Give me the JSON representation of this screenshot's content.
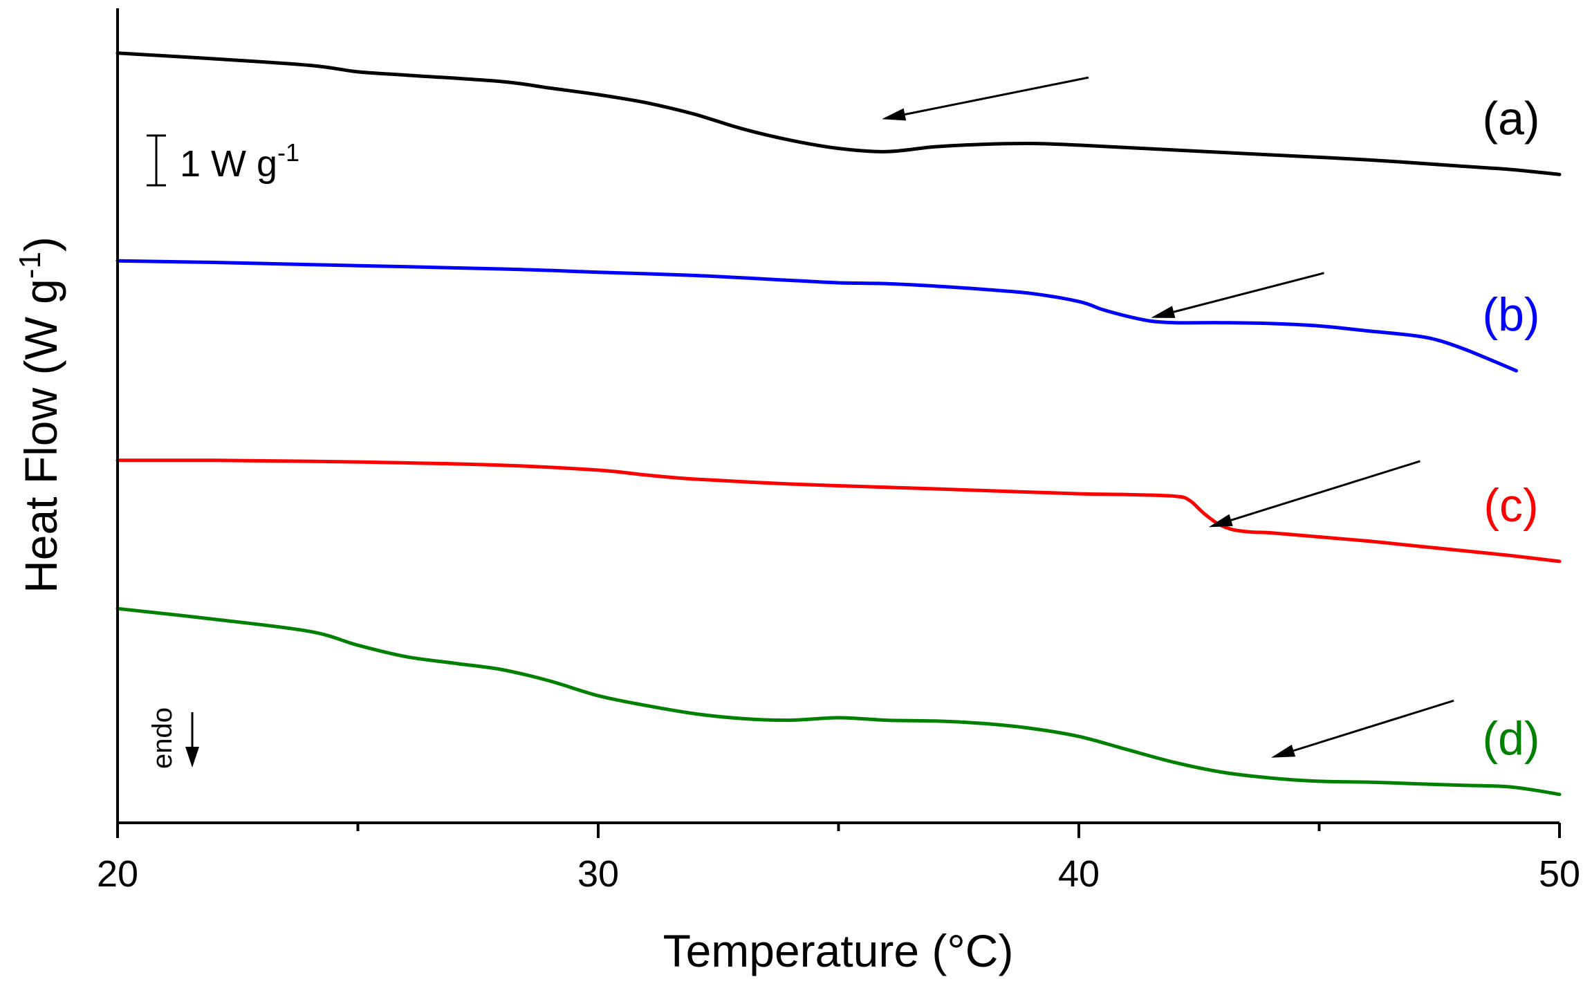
{
  "chart_data": {
    "type": "line",
    "title": "",
    "xlabel": "Temperature (°C)",
    "ylabel_main": "Heat Flow (W g",
    "ylabel_sup": "-1",
    "ylabel_close": ")",
    "xlim": [
      20,
      50
    ],
    "ylim": [
      0,
      10
    ],
    "x_ticks": [
      20,
      30,
      40,
      50
    ],
    "x_tick_labels": [
      "20",
      "30",
      "40",
      "50"
    ],
    "x_minor_ticks": [
      25,
      35,
      45
    ],
    "grid": false,
    "scale_bar": {
      "label": "1 W g",
      "sup": "-1",
      "value": 1
    },
    "endo_label": "endo",
    "series": [
      {
        "name": "(a)",
        "color": "#000000",
        "x": [
          20,
          22,
          24,
          25,
          26,
          28,
          29,
          30,
          31,
          32,
          33,
          34,
          35,
          36,
          37,
          38,
          39,
          40,
          42,
          44,
          46,
          48,
          49,
          50
        ],
        "y": [
          9.45,
          9.38,
          9.3,
          9.22,
          9.18,
          9.1,
          9.02,
          8.94,
          8.84,
          8.7,
          8.52,
          8.38,
          8.28,
          8.24,
          8.3,
          8.33,
          8.34,
          8.32,
          8.26,
          8.2,
          8.14,
          8.06,
          8.02,
          7.96
        ],
        "arrow_tip": [
          35.9,
          8.64
        ],
        "arrow_tail": [
          40.2,
          9.15
        ]
      },
      {
        "name": "(b)",
        "color": "#0000ff",
        "x": [
          20,
          22,
          25,
          28,
          30,
          32,
          34,
          35,
          36,
          37,
          38,
          39,
          40,
          40.5,
          41,
          41.5,
          42,
          43,
          44,
          45,
          46,
          47,
          47.5,
          48,
          48.5,
          49.1
        ],
        "y": [
          6.9,
          6.88,
          6.84,
          6.8,
          6.76,
          6.72,
          6.66,
          6.63,
          6.62,
          6.59,
          6.55,
          6.5,
          6.4,
          6.3,
          6.22,
          6.16,
          6.14,
          6.14,
          6.13,
          6.1,
          6.04,
          5.98,
          5.92,
          5.82,
          5.7,
          5.55
        ],
        "arrow_tip": [
          41.5,
          6.2
        ],
        "arrow_tail": [
          45.1,
          6.75
        ]
      },
      {
        "name": "(c)",
        "color": "#ff0000",
        "x": [
          20,
          22,
          25,
          28,
          30,
          31,
          32,
          34,
          36,
          38,
          40,
          41,
          42,
          42.3,
          42.6,
          42.9,
          43.2,
          43.6,
          44,
          45,
          46,
          47,
          48,
          49,
          50
        ],
        "y": [
          4.45,
          4.45,
          4.43,
          4.39,
          4.33,
          4.27,
          4.22,
          4.16,
          4.12,
          4.08,
          4.04,
          4.03,
          4.01,
          3.96,
          3.8,
          3.67,
          3.6,
          3.57,
          3.56,
          3.51,
          3.46,
          3.4,
          3.34,
          3.28,
          3.21
        ],
        "arrow_tip": [
          42.7,
          3.63
        ],
        "arrow_tail": [
          47.1,
          4.44
        ]
      },
      {
        "name": "(d)",
        "color": "#008000",
        "x": [
          20,
          22,
          24,
          25,
          26,
          27,
          28,
          29,
          30,
          31,
          32,
          33,
          34,
          35,
          36,
          37,
          38,
          39,
          40,
          41,
          42,
          43,
          44,
          45,
          46,
          47,
          48,
          49,
          50
        ],
        "y": [
          2.63,
          2.5,
          2.35,
          2.18,
          2.04,
          1.96,
          1.88,
          1.74,
          1.56,
          1.44,
          1.34,
          1.28,
          1.26,
          1.29,
          1.26,
          1.25,
          1.22,
          1.16,
          1.06,
          0.9,
          0.74,
          0.62,
          0.55,
          0.51,
          0.5,
          0.48,
          0.46,
          0.44,
          0.35
        ],
        "arrow_tip": [
          44.0,
          0.8
        ],
        "arrow_tail": [
          47.8,
          1.5
        ]
      }
    ]
  }
}
